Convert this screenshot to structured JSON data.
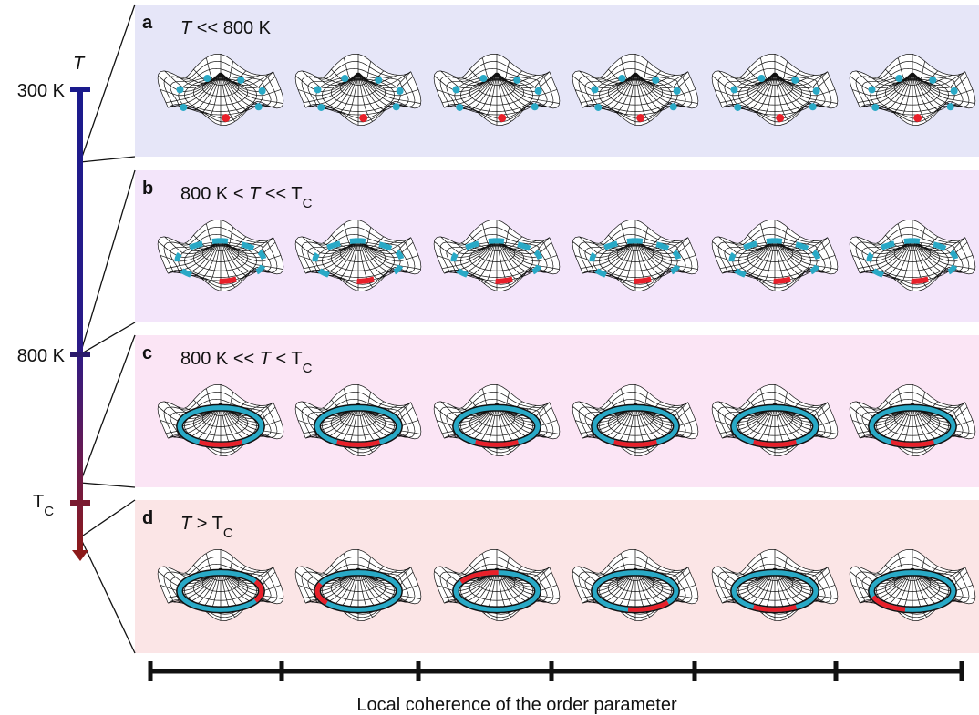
{
  "temperature_axis": {
    "title": "T",
    "ticks": [
      {
        "text": "300 K"
      },
      {
        "text": "800 K"
      },
      {
        "parts": [
          {
            "text": "T",
            "style": "normal"
          },
          {
            "text": "C",
            "style": "sub"
          }
        ]
      }
    ]
  },
  "panels": [
    {
      "label": "a",
      "condition": [
        {
          "text": "T",
          "style": "italic"
        },
        {
          "text": " <<  800 K",
          "style": "normal"
        }
      ]
    },
    {
      "label": "b",
      "condition": [
        {
          "text": "800 K < ",
          "style": "normal"
        },
        {
          "text": "T",
          "style": "italic"
        },
        {
          "text": " << T",
          "style": "normal"
        },
        {
          "text": "C",
          "style": "sub"
        }
      ]
    },
    {
      "label": "c",
      "condition": [
        {
          "text": "800 K << ",
          "style": "normal"
        },
        {
          "text": "T",
          "style": "italic"
        },
        {
          "text": " < T",
          "style": "normal"
        },
        {
          "text": "C",
          "style": "sub"
        }
      ]
    },
    {
      "label": "d",
      "condition": [
        {
          "text": "T",
          "style": "italic"
        },
        {
          "text": " > T",
          "style": "normal"
        },
        {
          "text": "C",
          "style": "sub"
        }
      ]
    }
  ],
  "x_axis_label": "Local coherence of the order parameter"
}
